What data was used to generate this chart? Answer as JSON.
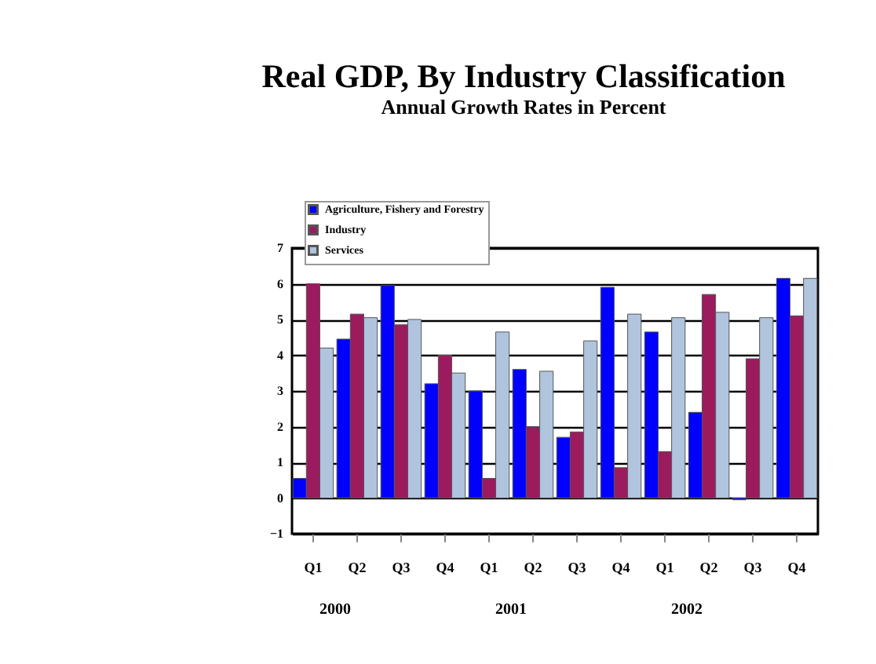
{
  "chart_data": {
    "type": "bar",
    "title": "Real GDP, By Industry Classification",
    "subtitle": "Annual Growth Rates in Percent",
    "categories": [
      "Q1",
      "Q2",
      "Q3",
      "Q4",
      "Q1",
      "Q2",
      "Q3",
      "Q4",
      "Q1",
      "Q2",
      "Q3",
      "Q4"
    ],
    "series": [
      {
        "name": "Agriculture, Fishery and Forestry",
        "color": "#0000ff",
        "values": [
          0.55,
          4.45,
          5.95,
          3.2,
          3.0,
          3.6,
          1.7,
          5.9,
          4.65,
          2.4,
          -0.05,
          6.15
        ]
      },
      {
        "name": "Industry",
        "color": "#9b1b5e",
        "values": [
          6.0,
          5.15,
          4.85,
          4.0,
          0.55,
          2.0,
          1.85,
          0.85,
          1.3,
          5.7,
          3.9,
          5.1
        ]
      },
      {
        "name": "Services",
        "color": "#b0c4de",
        "values": [
          4.2,
          5.05,
          5.0,
          3.5,
          4.65,
          3.55,
          4.4,
          5.15,
          5.05,
          5.2,
          5.05,
          6.15
        ]
      }
    ],
    "annotations": [
      "2000",
      "2001",
      "2002"
    ],
    "ylim": [
      -1,
      7
    ],
    "yticks": [
      -1,
      0,
      1,
      2,
      3,
      4,
      5,
      6,
      7
    ],
    "grid": "y",
    "legend": "top left"
  }
}
